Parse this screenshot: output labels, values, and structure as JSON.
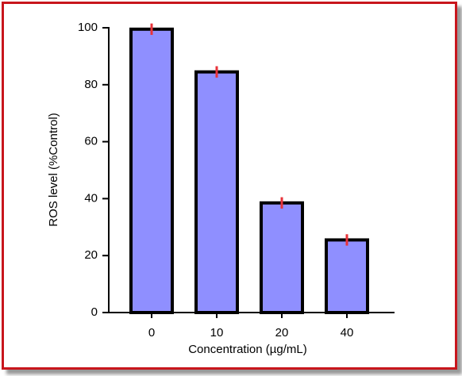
{
  "chart_data": {
    "type": "bar",
    "categories": [
      "0",
      "10",
      "20",
      "40"
    ],
    "values": [
      99.5,
      84.5,
      38.5,
      25.5
    ],
    "errors": [
      2,
      2,
      2,
      2
    ],
    "color": "#8f8fff",
    "error_color": "#e8333a",
    "xlabel": "Concentration (µg/mL)",
    "ylabel": "ROS level (%Control)",
    "ylim": [
      0,
      100
    ],
    "yticks": [
      0,
      20,
      40,
      60,
      80,
      100
    ]
  }
}
